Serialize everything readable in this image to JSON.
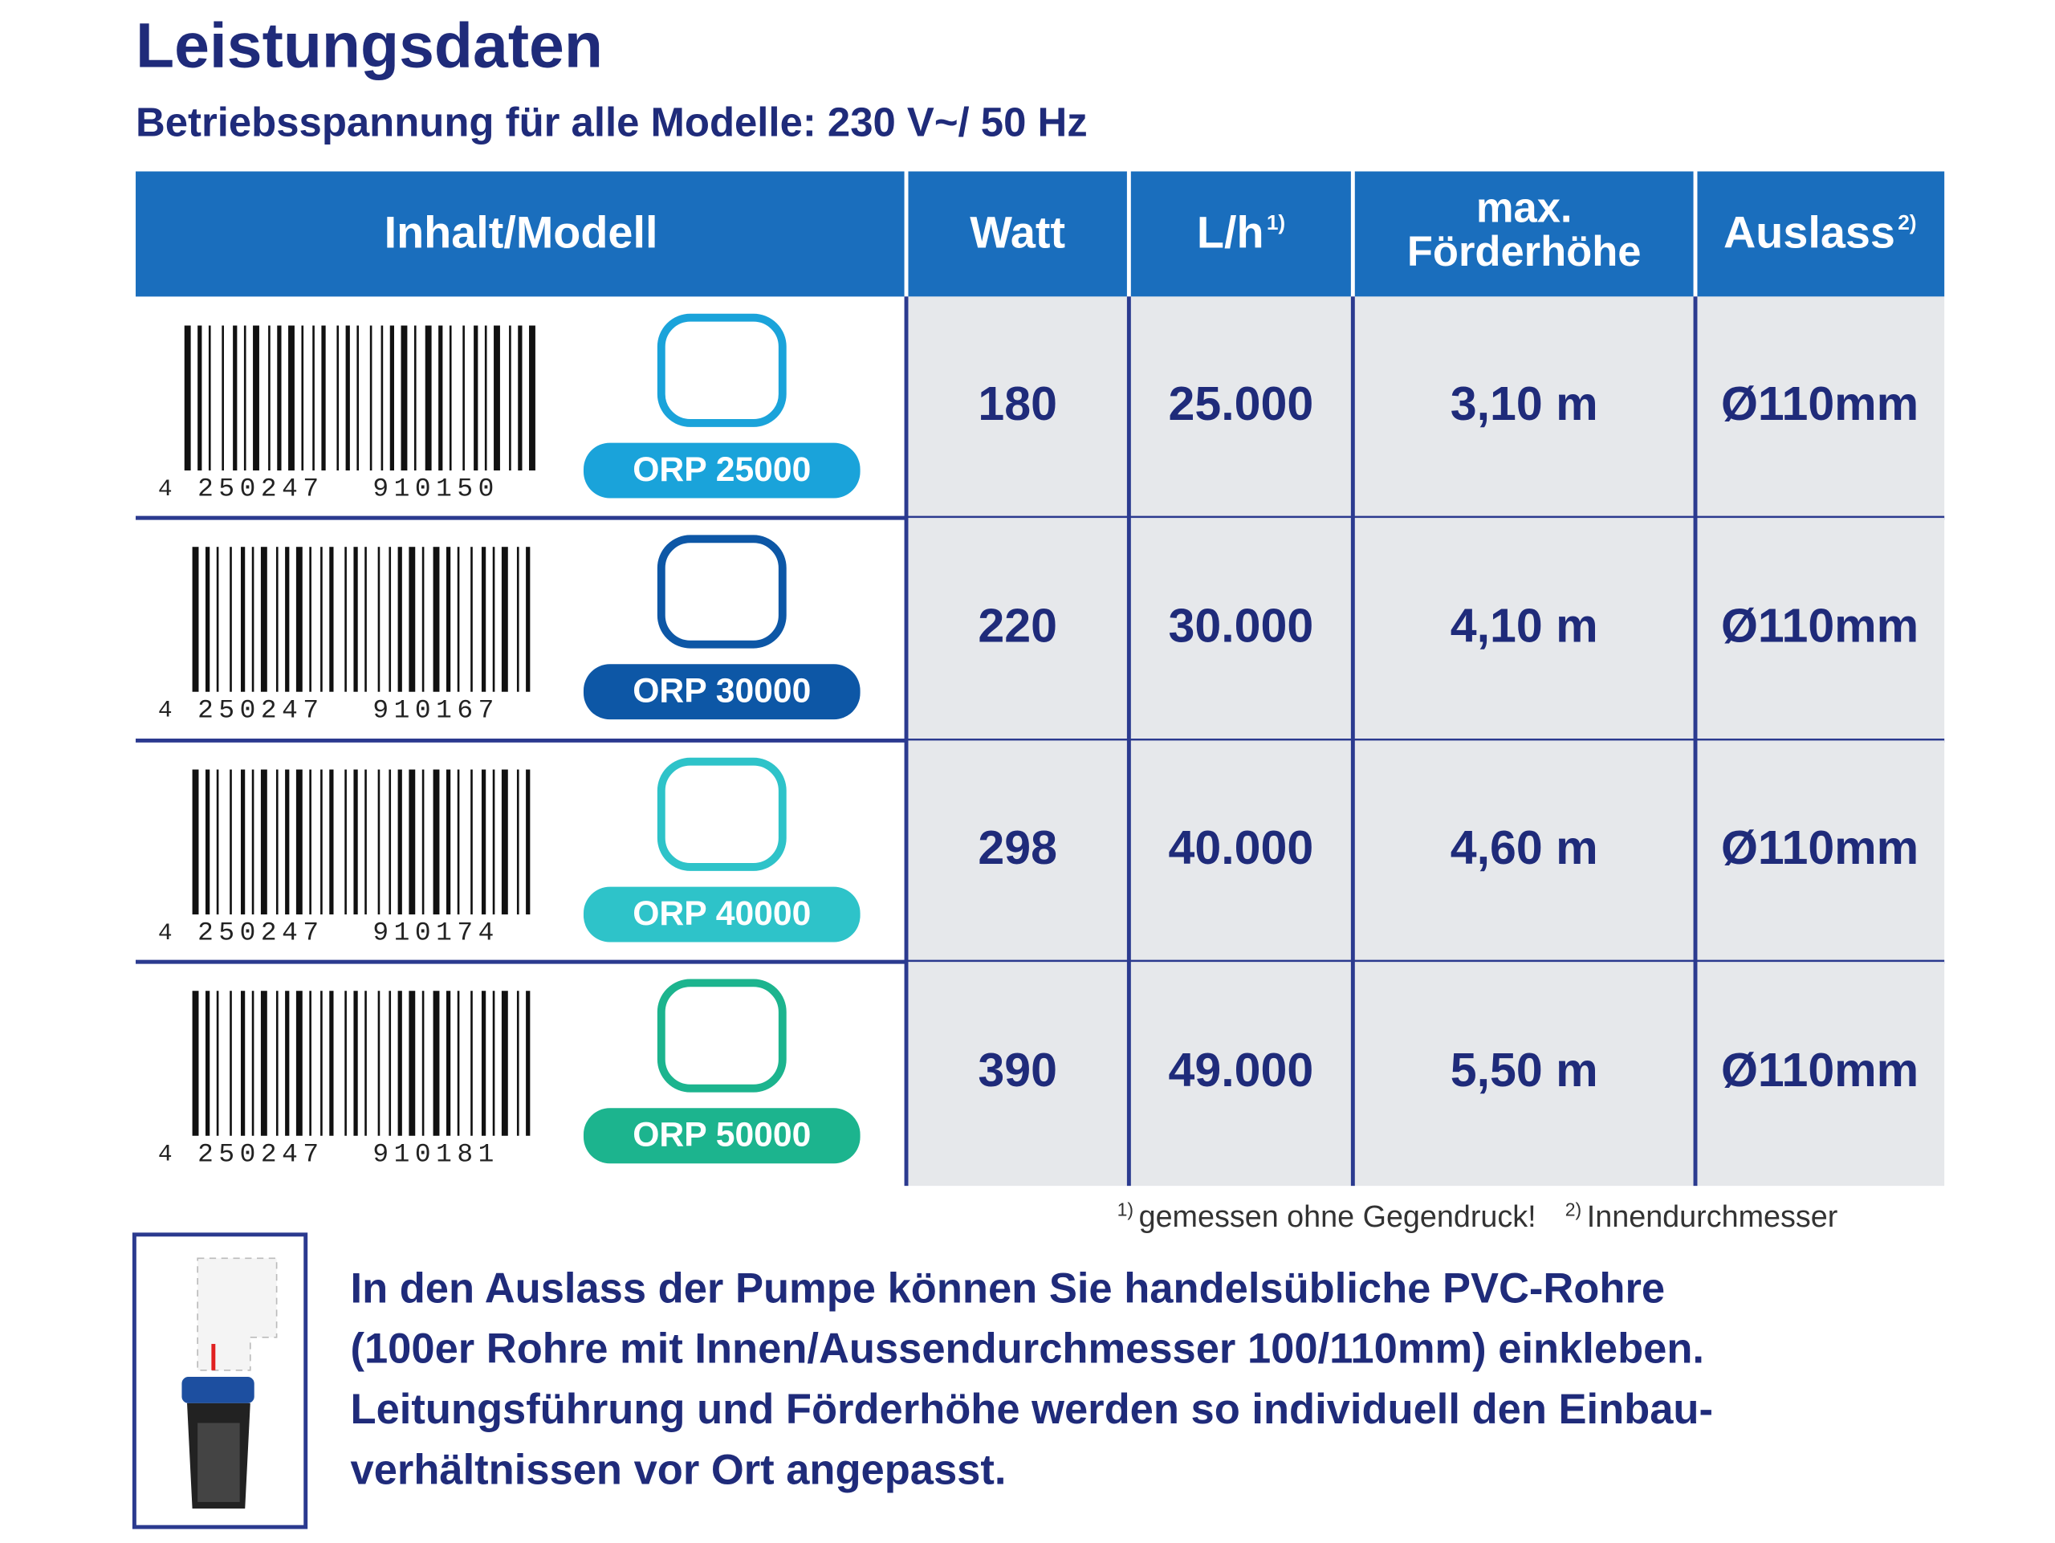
{
  "header": {
    "title": "Leistungsdaten",
    "subtitle": "Betriebsspannung für alle Modelle: 230 V~/ 50 Hz"
  },
  "table": {
    "columns": [
      "Inhalt/Modell",
      "Watt",
      "L/h",
      "max. Förderhöhe",
      "Auslass"
    ],
    "column_notes": {
      "2": "1)",
      "4": "2)"
    },
    "rows": [
      {
        "barcode": [
          "4",
          "250247",
          "910150"
        ],
        "model": "ORP 25000",
        "color": "#1aa3da",
        "watt": "180",
        "flow": "25.000",
        "height": "3,10 m",
        "outlet": "Ø110mm"
      },
      {
        "barcode": [
          "4",
          "250247",
          "910167"
        ],
        "model": "ORP 30000",
        "color": "#0d57a6",
        "watt": "220",
        "flow": "30.000",
        "height": "4,10 m",
        "outlet": "Ø110mm"
      },
      {
        "barcode": [
          "4",
          "250247",
          "910174"
        ],
        "model": "ORP 40000",
        "color": "#2ec3c9",
        "watt": "298",
        "flow": "40.000",
        "height": "4,60 m",
        "outlet": "Ø110mm"
      },
      {
        "barcode": [
          "4",
          "250247",
          "910181"
        ],
        "model": "ORP 50000",
        "color": "#1cb48e",
        "watt": "390",
        "flow": "49.000",
        "height": "5,50 m",
        "outlet": "Ø110mm"
      }
    ]
  },
  "footnotes": [
    {
      "mark": "1)",
      "text": "gemessen ohne Gegendruck!"
    },
    {
      "mark": "2)",
      "text": "Innendurchmesser"
    }
  ],
  "note": {
    "lines": [
      "In den Auslass der Pumpe können Sie handelsübliche PVC-Rohre",
      "(100er Rohre mit Innen/Aussendurchmesser 100/110mm) einkleben.",
      "Leitungsführung und Förderhöhe werden so individuell den Einbau-",
      "verhältnissen vor Ort angepasst."
    ]
  }
}
